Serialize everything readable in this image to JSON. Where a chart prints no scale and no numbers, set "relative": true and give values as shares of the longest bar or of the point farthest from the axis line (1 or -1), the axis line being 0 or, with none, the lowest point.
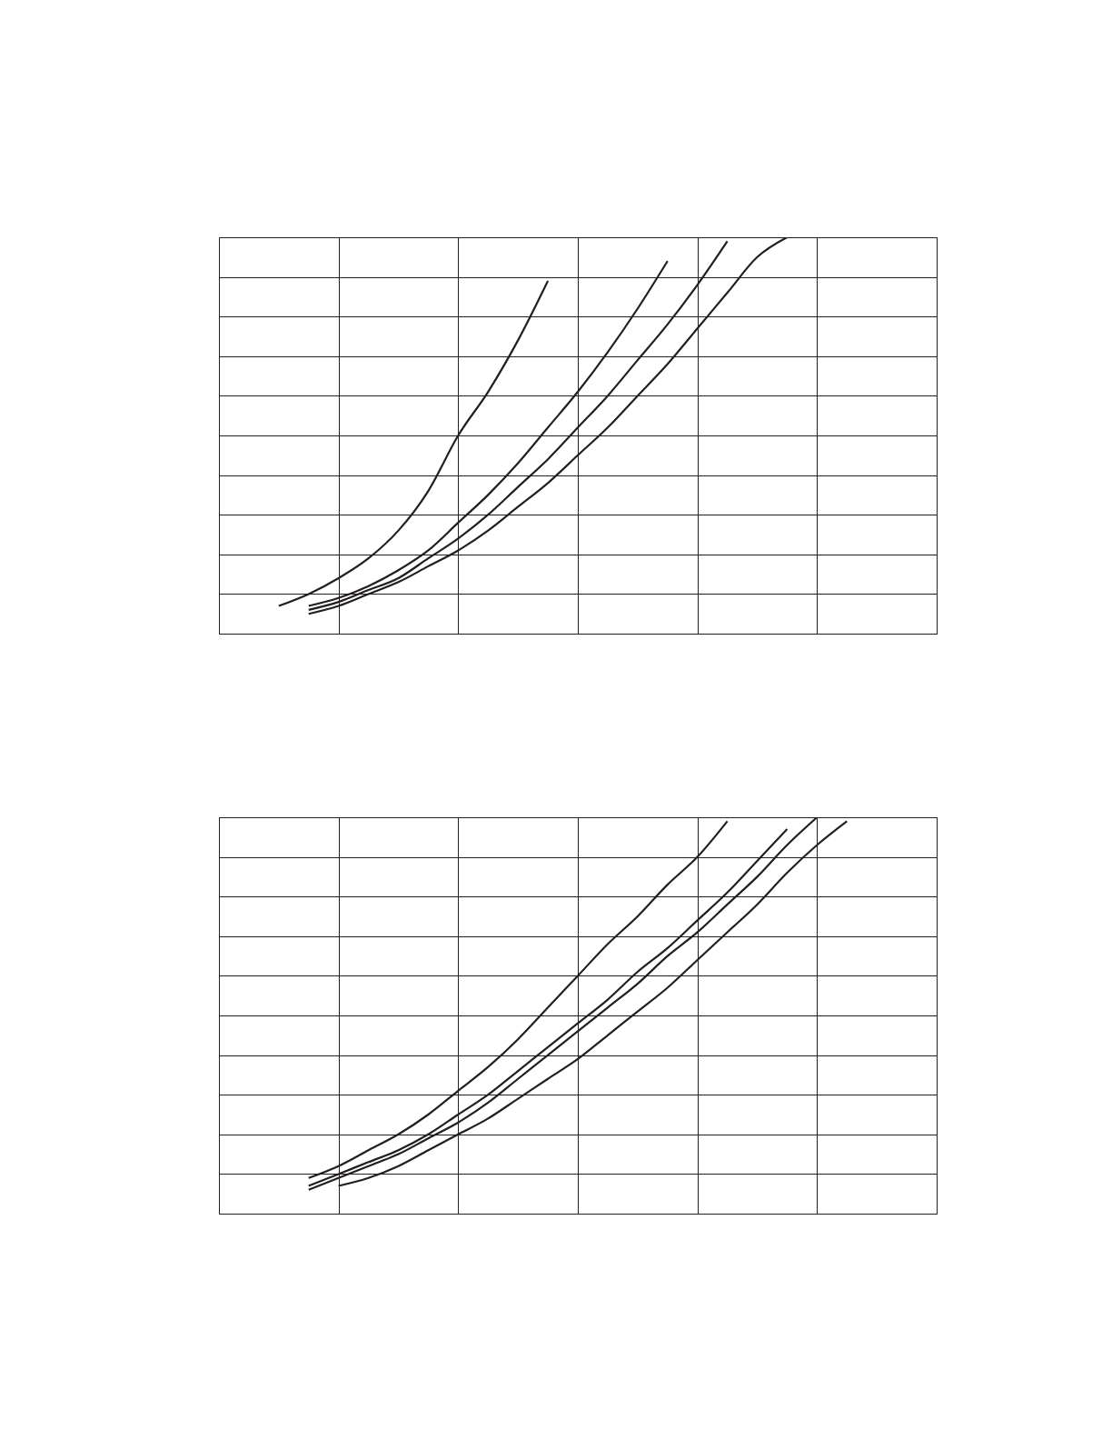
{
  "chart_data": [
    {
      "type": "line",
      "relative": true,
      "grid": true,
      "tick_labels": false,
      "line_style": "solid",
      "categories": [
        null,
        null,
        null,
        null,
        null,
        null,
        null,
        null,
        null,
        null,
        null,
        null,
        null,
        null,
        null,
        null,
        null,
        null,
        null,
        null,
        null,
        null,
        null,
        null,
        null
      ],
      "series": [
        {
          "color": "#231f20",
          "values": [
            null,
            null,
            0.07,
            0.1,
            0.14,
            0.19,
            0.26,
            0.36,
            0.5,
            0.61,
            0.74,
            0.89,
            null,
            null,
            null,
            null,
            null,
            null,
            null,
            null,
            null,
            null,
            null,
            null,
            null
          ]
        },
        {
          "color": "#231f20",
          "values": [
            null,
            null,
            null,
            0.07,
            0.09,
            0.12,
            0.16,
            0.21,
            0.28,
            0.35,
            0.43,
            0.52,
            0.61,
            0.71,
            0.82,
            0.94,
            null,
            null,
            null,
            null,
            null,
            null,
            null,
            null,
            null
          ]
        },
        {
          "color": "#231f20",
          "values": [
            null,
            null,
            null,
            0.06,
            0.08,
            0.11,
            0.14,
            0.19,
            0.24,
            0.3,
            0.37,
            0.44,
            0.52,
            0.6,
            0.69,
            0.78,
            0.88,
            0.99,
            null,
            null,
            null,
            null,
            null,
            null,
            null
          ]
        },
        {
          "color": "#231f20",
          "values": [
            null,
            null,
            null,
            0.05,
            0.07,
            0.1,
            0.13,
            0.17,
            0.21,
            0.26,
            0.32,
            0.38,
            0.45,
            0.52,
            0.6,
            0.68,
            0.77,
            0.86,
            0.95,
            1.0,
            null,
            null,
            null,
            null,
            null
          ]
        }
      ]
    },
    {
      "type": "line",
      "relative": true,
      "grid": true,
      "tick_labels": false,
      "line_style": "solid",
      "categories": [
        null,
        null,
        null,
        null,
        null,
        null,
        null,
        null,
        null,
        null,
        null,
        null,
        null,
        null,
        null,
        null,
        null,
        null,
        null,
        null,
        null,
        null,
        null,
        null,
        null
      ],
      "series": [
        {
          "color": "#231f20",
          "values": [
            null,
            null,
            null,
            0.09,
            0.12,
            0.16,
            0.2,
            0.25,
            0.31,
            0.37,
            0.44,
            0.52,
            0.6,
            0.68,
            0.75,
            0.83,
            0.9,
            0.99,
            null,
            null,
            null,
            null,
            null,
            null,
            null
          ]
        },
        {
          "color": "#231f20",
          "values": [
            null,
            null,
            null,
            0.07,
            0.1,
            0.13,
            0.16,
            0.2,
            0.25,
            0.3,
            0.36,
            0.42,
            0.48,
            0.54,
            0.61,
            0.67,
            0.74,
            0.81,
            0.89,
            0.97,
            null,
            null,
            null,
            null,
            null
          ]
        },
        {
          "color": "#231f20",
          "values": [
            null,
            null,
            null,
            0.06,
            0.09,
            0.12,
            0.15,
            0.19,
            0.23,
            0.28,
            0.34,
            0.4,
            0.46,
            0.52,
            0.58,
            0.65,
            0.71,
            0.78,
            0.85,
            0.93,
            1.0,
            null,
            null,
            null,
            null
          ]
        },
        {
          "color": "#231f20",
          "values": [
            null,
            null,
            null,
            null,
            0.07,
            0.09,
            0.12,
            0.16,
            0.2,
            0.24,
            0.29,
            0.34,
            0.39,
            0.45,
            0.51,
            0.57,
            0.64,
            0.71,
            0.78,
            0.86,
            0.93,
            0.99,
            null,
            null,
            null
          ]
        }
      ]
    }
  ]
}
